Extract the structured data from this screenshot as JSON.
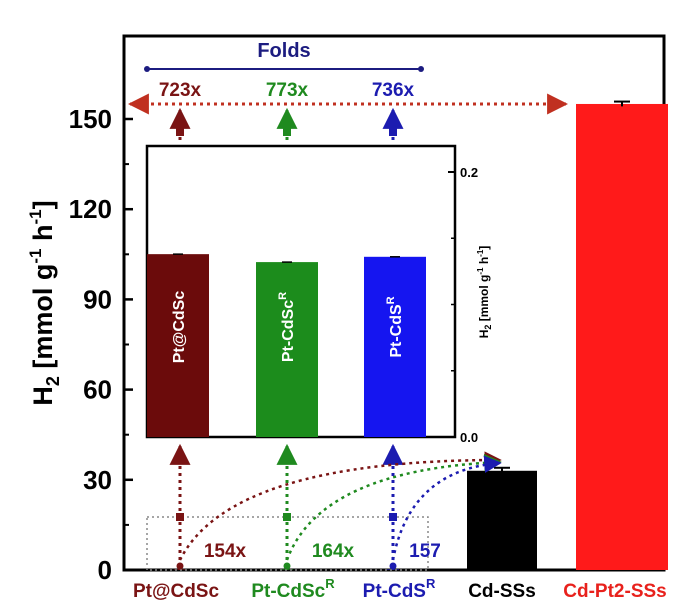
{
  "chart_data": [
    {
      "type": "bar",
      "name": "main",
      "ylabel": "H2 [mmol g-1 h-1]",
      "ylabel_parts": {
        "base": "H",
        "sub": "2",
        "open": " [mmol g",
        "sup1": "-1",
        "mid": " h",
        "sup2": "-1",
        "close": "]"
      },
      "ylim": [
        0,
        170
      ],
      "yticks": [
        0,
        30,
        60,
        90,
        120,
        150
      ],
      "categories": [
        {
          "name": "Pt@CdSc",
          "base": "Pt@CdSc",
          "sup": "",
          "color": "#7a1414"
        },
        {
          "name": "Pt-CdScR",
          "base": "Pt-CdSc",
          "sup": "R",
          "color": "#1f8a1f"
        },
        {
          "name": "Pt-CdSR",
          "base": "Pt-CdS",
          "sup": "R",
          "color": "#1c1cb0"
        },
        {
          "name": "Cd-SSs",
          "base": "Cd-SSs",
          "sup": "",
          "color": "#000000"
        },
        {
          "name": "Cd-Pt2-SSs",
          "base": "Cd-Pt2-SSs",
          "sup": "",
          "color": "#e8211c"
        }
      ],
      "values": [
        0.138,
        0.132,
        0.136,
        33,
        155
      ],
      "errors": [
        0,
        0,
        0,
        1.0,
        0.8
      ],
      "bar_colors": [
        "#7a1414",
        "#1f8a1f",
        "#1c1cb0",
        "#000000",
        "#ff1a1a"
      ]
    },
    {
      "type": "bar",
      "name": "inset",
      "ylabel": "H2 [mmol g-1 h-1]",
      "ylim": [
        0,
        0.225
      ],
      "yticks": [
        0.0,
        0.2
      ],
      "ytick_labels": [
        "0.0",
        "0.2"
      ],
      "minor_ticks": [
        0.05,
        0.1,
        0.15
      ],
      "categories": [
        "Pt@CdSc",
        "Pt-CdScR",
        "Pt-CdSR"
      ],
      "values": [
        0.138,
        0.132,
        0.136
      ],
      "bar_colors": [
        "#6b0b0b",
        "#1c8c1c",
        "#1515f0"
      ]
    }
  ],
  "annotations": {
    "folds_title": "Folds",
    "folds_top": [
      {
        "label": "723x",
        "color": "#7a1414"
      },
      {
        "label": "773x",
        "color": "#1f8a1f"
      },
      {
        "label": "736x",
        "color": "#1c1cb0"
      }
    ],
    "folds_bottom": [
      {
        "label": "154x",
        "color": "#7a1414"
      },
      {
        "label": "164x",
        "color": "#1f8a1f"
      },
      {
        "label": "157",
        "color": "#1c1cb0"
      }
    ],
    "folds_color": "#1c1c80"
  }
}
